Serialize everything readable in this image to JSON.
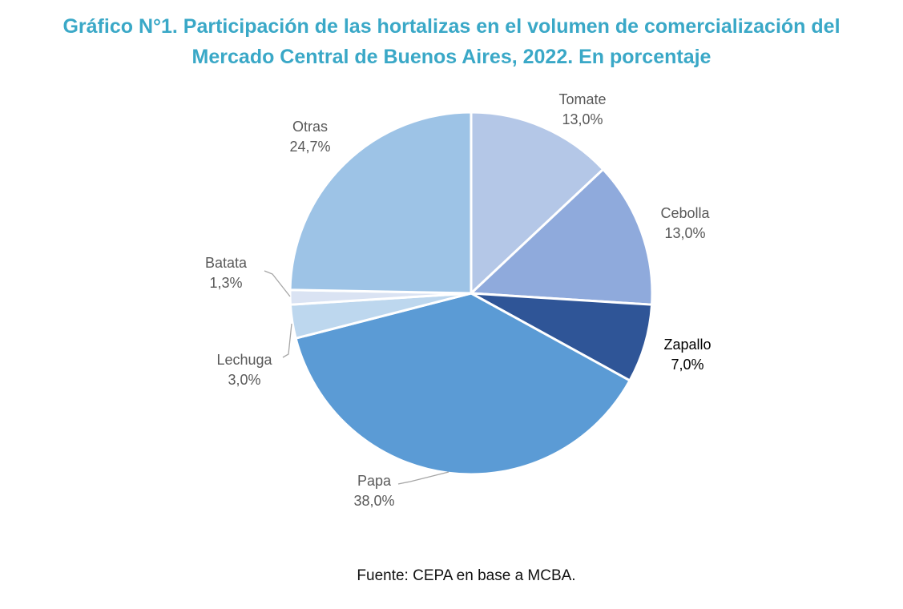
{
  "title": {
    "line1": "Gráfico N°1. Participación de las hortalizas en el volumen de comercialización del",
    "line2": "Mercado Central de Buenos Aires, 2022. En porcentaje"
  },
  "source": "Fuente: CEPA en base a MCBA.",
  "colors": {
    "title": "#3aa8c7",
    "label_default": "#595959",
    "label_dark": "#000000"
  },
  "chart_data": {
    "type": "pie",
    "title": "Gráfico N°1. Participación de las hortalizas en el volumen de comercialización del Mercado Central de Buenos Aires, 2022. En porcentaje",
    "start": "12 o'clock",
    "direction": "clockwise",
    "slices": [
      {
        "name": "Tomate",
        "value": 13.0,
        "label": "13,0%",
        "color": "#b4c7e7"
      },
      {
        "name": "Cebolla",
        "value": 13.0,
        "label": "13,0%",
        "color": "#8faadc"
      },
      {
        "name": "Zapallo",
        "value": 7.0,
        "label": "7,0%",
        "color": "#2f5597"
      },
      {
        "name": "Papa",
        "value": 38.0,
        "label": "38,0%",
        "color": "#5b9bd5"
      },
      {
        "name": "Lechuga",
        "value": 3.0,
        "label": "3,0%",
        "color": "#bdd7ee"
      },
      {
        "name": "Batata",
        "value": 1.3,
        "label": "1,3%",
        "color": "#dae3f3"
      },
      {
        "name": "Otras",
        "value": 24.7,
        "label": "24,7%",
        "color": "#9dc3e6"
      }
    ]
  }
}
